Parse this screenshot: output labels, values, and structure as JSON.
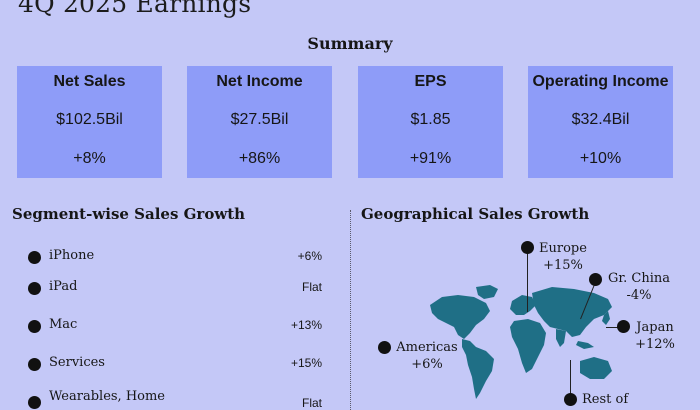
{
  "header": {
    "title": "4Q 2025 Earnings"
  },
  "summary": {
    "heading": "Summary",
    "cards": [
      {
        "title": "Net Sales",
        "value": "$102.5Bil",
        "change": "+8%"
      },
      {
        "title": "Net Income",
        "value": "$27.5Bil",
        "change": "+86%"
      },
      {
        "title": "EPS",
        "value": "$1.85",
        "change": "+91%"
      },
      {
        "title": "Operating Income",
        "value": "$32.4Bil",
        "change": "+10%"
      }
    ]
  },
  "segments": {
    "heading": "Segment-wise Sales Growth",
    "items": [
      {
        "name": "iPhone",
        "value": "+6%"
      },
      {
        "name": "iPad",
        "value": "Flat"
      },
      {
        "name": "Mac",
        "value": "+13%"
      },
      {
        "name": "Services",
        "value": "+15%"
      },
      {
        "name": "Wearables, Home",
        "value": "Flat"
      }
    ]
  },
  "geography": {
    "heading": "Geographical Sales Growth",
    "regions": [
      {
        "name": "Europe",
        "value": "+15%"
      },
      {
        "name": "Gr. China",
        "value": "-4%"
      },
      {
        "name": "Japan",
        "value": "+12%"
      },
      {
        "name": "Americas",
        "value": "+6%"
      },
      {
        "name": "Rest of",
        "value": ""
      }
    ]
  },
  "colors": {
    "background": "#c4c8f7",
    "card": "#8e9cf8",
    "map": "#1f6f86"
  }
}
